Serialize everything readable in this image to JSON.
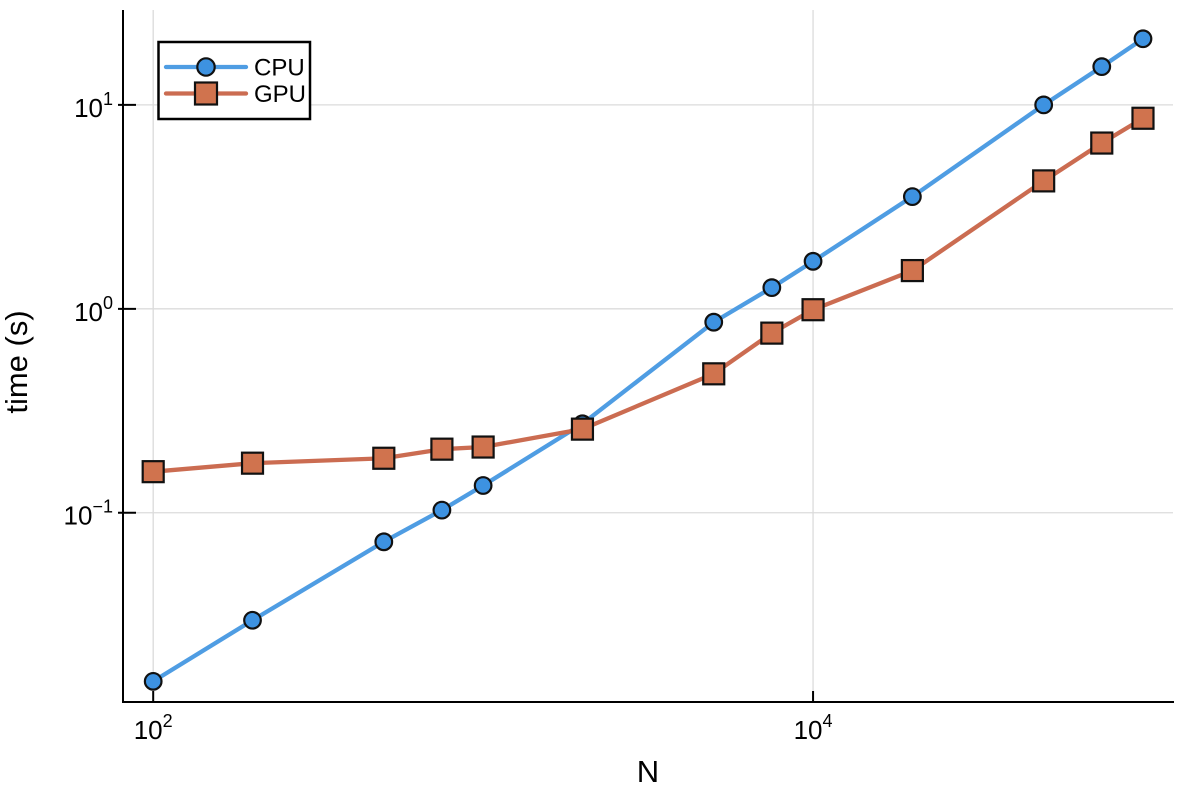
{
  "figure": {
    "background": "#ffffff",
    "axis_color": "#000000",
    "grid_color": "#dbdbdb",
    "marker_stroke_color": "#111111",
    "legend_border_color": "#000000",
    "legend_background": "#ffffff"
  },
  "chart_data": {
    "type": "line",
    "title": "",
    "xlabel": "N",
    "ylabel": "time (s)",
    "x_scale": "log10",
    "y_scale": "log10",
    "xlim": [
      81,
      123300
    ],
    "ylim": [
      0.0118,
      29.2
    ],
    "grid": true,
    "legend_position": "top-left",
    "x": [
      100,
      200,
      500,
      750,
      1000,
      2000,
      5000,
      7500,
      10000,
      20000,
      50000,
      75000,
      100000
    ],
    "series": [
      {
        "name": "CPU",
        "marker": "circle",
        "line_color": "#4F9DE3",
        "marker_color": "#3D92E1",
        "values": [
          0.0149,
          0.0297,
          0.072,
          0.103,
          0.136,
          0.273,
          0.86,
          1.27,
          1.71,
          3.55,
          10.0,
          15.4,
          21.1
        ]
      },
      {
        "name": "GPU",
        "marker": "square",
        "line_color": "#CB6C51",
        "marker_color": "#D0734E",
        "values": [
          0.159,
          0.175,
          0.185,
          0.205,
          0.21,
          0.257,
          0.48,
          0.76,
          0.99,
          1.54,
          4.24,
          6.5,
          8.6
        ]
      }
    ],
    "x_ticks": [
      {
        "value": 100,
        "base": "10",
        "exp": "2"
      },
      {
        "value": 10000,
        "base": "10",
        "exp": "4"
      }
    ],
    "y_ticks": [
      {
        "value": 0.1,
        "base": "10",
        "exp": "−1"
      },
      {
        "value": 1,
        "base": "10",
        "exp": "0"
      },
      {
        "value": 10,
        "base": "10",
        "exp": "1"
      }
    ]
  }
}
